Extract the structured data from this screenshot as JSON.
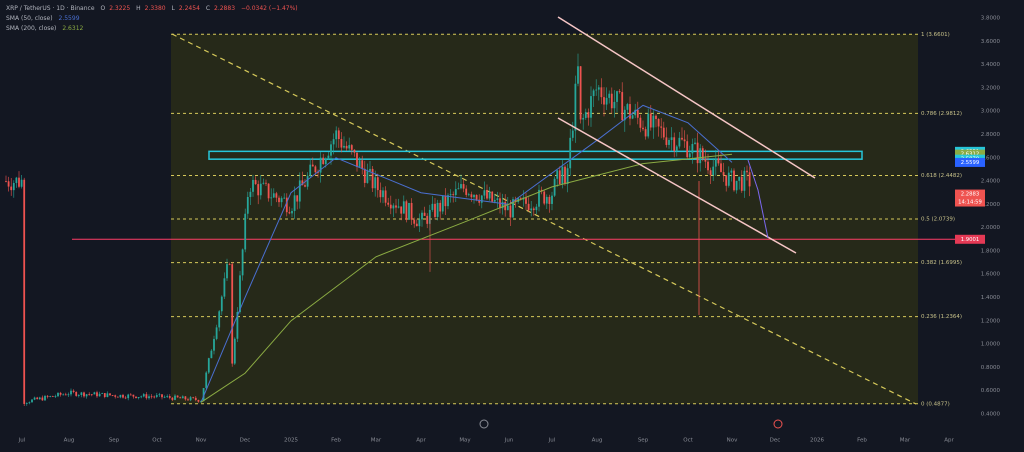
{
  "header": {
    "symbol": "XRP / TetherUS · 1D · Binance",
    "ohlc": [
      {
        "k": "O",
        "v": "2.3225"
      },
      {
        "k": "H",
        "v": "2.3380"
      },
      {
        "k": "L",
        "v": "2.2454"
      },
      {
        "k": "C",
        "v": "2.2883"
      }
    ],
    "change": "−0.0342 (−1.47%)",
    "sma50_label": "SMA (50, close)",
    "sma50_value": "2.5599",
    "sma200_label": "SMA (200, close)",
    "sma200_value": "2.6312"
  },
  "colors": {
    "bg": "#131722",
    "zone": "#2a2d17",
    "up": "#26a69a",
    "down": "#ef5350",
    "fib": "#d6c95a",
    "sma50": "#4a6fd0",
    "sma200": "#8bab43",
    "resistance": "#26c6da",
    "support": "#ff3d67",
    "channel": "#f6c6c6"
  },
  "chart_data": {
    "type": "candlestick",
    "symbol": "XRP / TetherUS",
    "x_ticks": [
      "Jul",
      "Aug",
      "Sep",
      "Oct",
      "Nov",
      "Dec",
      "2025",
      "Feb",
      "Mar",
      "Apr",
      "May",
      "Jun",
      "Jul",
      "Aug",
      "Sep",
      "Oct",
      "Nov",
      "Dec",
      "2026",
      "Feb",
      "Mar",
      "Apr"
    ],
    "y_ticks": [
      "3.8000",
      "3.6000",
      "3.4000",
      "3.2000",
      "3.0000",
      "2.8000",
      "2.6000",
      "2.4000",
      "2.2000",
      "2.0000",
      "1.8000",
      "1.6000",
      "1.4000",
      "1.2000",
      "1.0000",
      "0.8000",
      "0.6000",
      "0.4000"
    ],
    "ylim": [
      0.33,
      3.83
    ],
    "fib_levels": [
      {
        "label": "1 (3.6601)",
        "value": 3.6601
      },
      {
        "label": "0.786 (2.9812)",
        "value": 2.9812
      },
      {
        "label": "0.618 (2.4482)",
        "value": 2.4482
      },
      {
        "label": "0.5 (2.0739)",
        "value": 2.0739
      },
      {
        "label": "0.382 (1.6995)",
        "value": 1.6995
      },
      {
        "label": "0.236 (1.2364)",
        "value": 1.2364
      },
      {
        "label": "0 (0.4877)",
        "value": 0.4877
      }
    ],
    "price_tags": [
      {
        "label": "2.6551",
        "value": 2.6551,
        "color": "#26c6da"
      },
      {
        "label": "2.6312",
        "value": 2.6312,
        "color": "#8bab43"
      },
      {
        "label": "2.5879",
        "value": 2.5879,
        "color": "#26c6da"
      },
      {
        "label": "2.5599",
        "value": 2.5599,
        "color": "#2962ff"
      },
      {
        "label": "2.2883",
        "value": 2.2883,
        "color": "#ef5350"
      },
      {
        "label": "14:14:59",
        "value": 2.22,
        "color": "#ef5350"
      },
      {
        "label": "1.9001",
        "value": 1.9001,
        "color": "#e53955"
      }
    ],
    "horizontal_support": 1.9001,
    "resistance_zone": [
      2.5879,
      2.6551
    ],
    "ohlc_anchor": [
      [
        "Jul",
        0.5
      ],
      [
        "Aug",
        0.58
      ],
      [
        "Sep",
        0.56
      ],
      [
        "Oct",
        0.55
      ],
      [
        "Nov",
        0.52
      ],
      [
        "Dec",
        2.4
      ],
      [
        "2025",
        2.2
      ],
      [
        "Feb",
        2.8
      ],
      [
        "Mar",
        2.35
      ],
      [
        "Apr",
        2.05
      ],
      [
        "May",
        2.35
      ],
      [
        "Jun",
        2.15
      ],
      [
        "Jul",
        2.3
      ],
      [
        "Aug",
        3.2
      ],
      [
        "Sep",
        2.9
      ],
      [
        "Oct",
        2.7
      ],
      [
        "Nov",
        2.4
      ]
    ],
    "sma50_approx": [
      [
        "Nov",
        0.5
      ],
      [
        "Dec",
        1.4
      ],
      [
        "2025",
        2.3
      ],
      [
        "Feb",
        2.6
      ],
      [
        "Apr",
        2.3
      ],
      [
        "Jun",
        2.2
      ],
      [
        "Aug",
        2.75
      ],
      [
        "Sep",
        3.05
      ],
      [
        "Oct",
        2.9
      ],
      [
        "Nov",
        2.56
      ]
    ],
    "sma200_approx": [
      [
        "Nov",
        0.5
      ],
      [
        "Dec",
        0.75
      ],
      [
        "2025",
        1.2
      ],
      [
        "Mar",
        1.75
      ],
      [
        "May",
        2.05
      ],
      [
        "Jul",
        2.35
      ],
      [
        "Sep",
        2.55
      ],
      [
        "Nov",
        2.63
      ]
    ],
    "grid": false
  }
}
